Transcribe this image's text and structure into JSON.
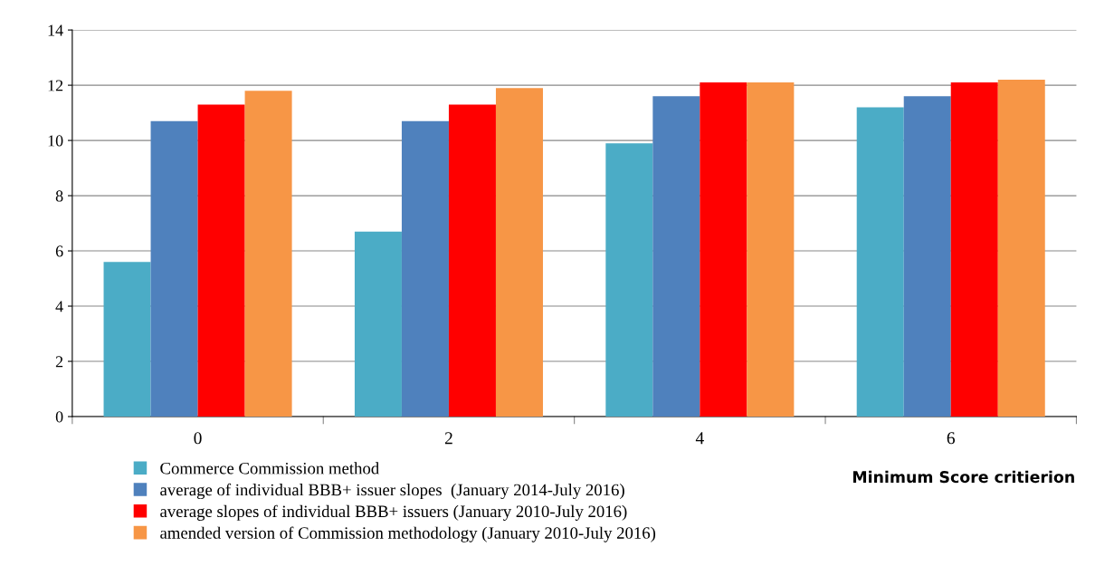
{
  "chart_data": {
    "type": "bar",
    "xlabel": "Minimum Score critierion",
    "categories": [
      "0",
      "2",
      "4",
      "6"
    ],
    "series": [
      {
        "name": "Commerce Commission method",
        "color": "#4bacc6",
        "values": [
          5.6,
          6.7,
          9.9,
          11.2
        ]
      },
      {
        "name": "average of individual BBB+ issuer slopes  (January 2014-July 2016)",
        "color": "#4f81bd",
        "values": [
          10.7,
          10.7,
          11.6,
          11.6
        ]
      },
      {
        "name": "average slopes of individual BBB+ issuers (January 2010-July 2016)",
        "color": "#ff0000",
        "values": [
          11.3,
          11.3,
          12.1,
          12.1
        ]
      },
      {
        "name": "amended version of Commission methodology (January 2010-July 2016)",
        "color": "#f79646",
        "values": [
          11.8,
          11.9,
          12.1,
          12.2
        ]
      }
    ],
    "ylim": [
      0,
      14
    ],
    "yticks": [
      0,
      2,
      4,
      6,
      8,
      10,
      12,
      14
    ],
    "grid": "y",
    "legend": "bottom"
  }
}
